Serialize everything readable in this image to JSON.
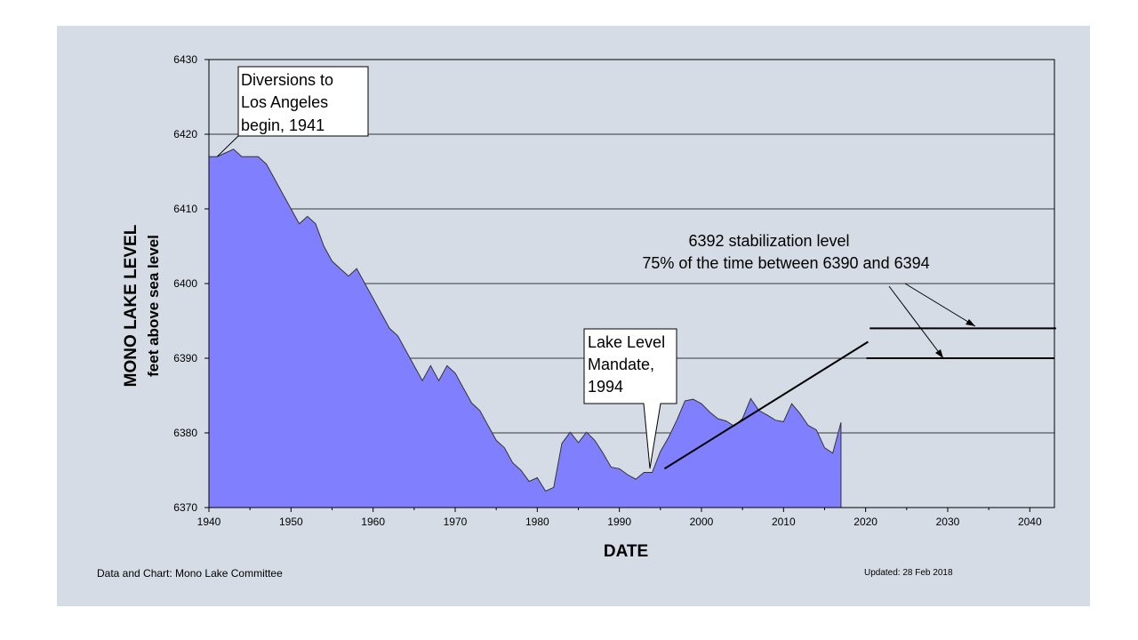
{
  "chart_data": {
    "type": "area",
    "title": "",
    "xlabel": "DATE",
    "ylabel": "MONO LAKE LEVEL",
    "ylabel_sub": "feet above sea level",
    "xlim": [
      1940,
      2043
    ],
    "ylim": [
      6370,
      6430
    ],
    "x_ticks": [
      1940,
      1950,
      1960,
      1970,
      1980,
      1990,
      2000,
      2010,
      2020,
      2030,
      2040
    ],
    "y_ticks": [
      6370,
      6380,
      6390,
      6400,
      6410,
      6420,
      6430
    ],
    "grid": "horizontal",
    "fill_color": "#8080ff",
    "series": [
      {
        "x": [
          1940,
          1941,
          1942,
          1943,
          1944,
          1945,
          1946,
          1947,
          1948,
          1949,
          1950,
          1951,
          1952,
          1953,
          1954,
          1955,
          1956,
          1957,
          1958,
          1959,
          1960,
          1961,
          1962,
          1963,
          1964,
          1965,
          1966,
          1967,
          1968,
          1969,
          1970,
          1971,
          1972,
          1973,
          1974,
          1975,
          1976,
          1977,
          1978,
          1979,
          1980,
          1981,
          1982,
          1983,
          1984,
          1985,
          1986,
          1987,
          1988,
          1989,
          1990,
          1991,
          1992,
          1993,
          1994,
          1995,
          1996,
          1997,
          1998,
          1999,
          2000,
          2001,
          2002,
          2003,
          2004,
          2005,
          2006,
          2007,
          2008,
          2009,
          2010,
          2011,
          2012,
          2013,
          2014,
          2015,
          2016,
          2017
        ],
        "values": [
          6417,
          6417,
          6417.5,
          6418,
          6417,
          6417,
          6417,
          6416,
          6414,
          6412,
          6410,
          6408,
          6409,
          6408,
          6405,
          6403,
          6402,
          6401,
          6402,
          6400,
          6398,
          6396,
          6394,
          6393,
          6391,
          6389,
          6387,
          6389,
          6387,
          6389,
          6388,
          6386,
          6384,
          6383,
          6381,
          6379,
          6378,
          6376,
          6375,
          6373.5,
          6374,
          6372.2,
          6372.7,
          6378.6,
          6380.1,
          6378.7,
          6380.1,
          6379,
          6377.3,
          6375.4,
          6375.2,
          6374.4,
          6373.8,
          6374.7,
          6374.7,
          6377.5,
          6379.4,
          6381.7,
          6384.3,
          6384.5,
          6383.9,
          6382.8,
          6381.9,
          6381.6,
          6380.9,
          6381.9,
          6384.6,
          6383.0,
          6382.4,
          6381.7,
          6381.5,
          6383.9,
          6382.6,
          6381.0,
          6380.4,
          6378.0,
          6377.3,
          6381.4
        ]
      }
    ],
    "trend_line": {
      "x": [
        1995.5,
        2020.3
      ],
      "y": [
        6375.2,
        6392.2
      ]
    },
    "stabilization_lines": [
      {
        "level": 6394,
        "x": [
          2020.5,
          2043.2
        ]
      },
      {
        "level": 6390,
        "x": [
          2020.1,
          2043.0
        ]
      }
    ],
    "annotations": {
      "diversions": [
        "Diversions to",
        "Los Angeles",
        "begin, 1941"
      ],
      "mandate": [
        "Lake Level",
        "Mandate,",
        "1994"
      ],
      "stabilization": [
        "6392 stabilization level",
        "75% of the time between 6390 and 6394"
      ]
    },
    "colors": {
      "background": "#d6dce5",
      "area": "#8080ff",
      "line": "#000000"
    }
  },
  "footer": {
    "left": "Data and Chart: Mono Lake Committee",
    "right": "Updated: 28 Feb 2018"
  }
}
